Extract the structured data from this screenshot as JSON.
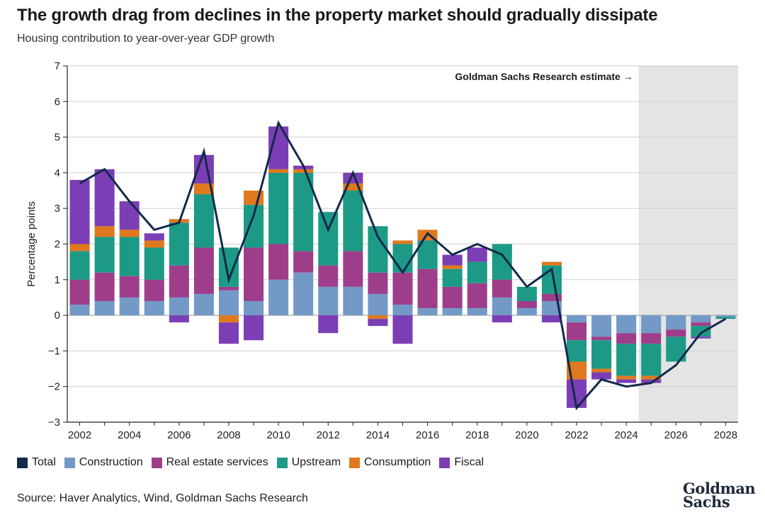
{
  "title": "The growth drag from declines in the property market should gradually dissipate",
  "subtitle": "Housing contribution to year-over-year GDP growth",
  "source": "Source: Haver Analytics, Wind, Goldman Sachs Research",
  "logo": {
    "line1": "Goldman",
    "line2": "Sachs"
  },
  "colors": {
    "Total": "#13294b",
    "Construction": "#7399c6",
    "Real estate services": "#9e3e8b",
    "Upstream": "#1c9a86",
    "Consumption": "#e0791d",
    "Fiscal": "#7c3eb5",
    "estimate_band": "#e4e4e4"
  },
  "legend": [
    {
      "name": "Total",
      "label": "Total"
    },
    {
      "name": "Construction",
      "label": "Construction"
    },
    {
      "name": "Real estate services",
      "label": "Real estate services"
    },
    {
      "name": "Upstream",
      "label": "Upstream"
    },
    {
      "name": "Consumption",
      "label": "Consumption"
    },
    {
      "name": "Fiscal",
      "label": "Fiscal"
    }
  ],
  "chart_data": {
    "type": "bar",
    "stacked": true,
    "title": "The growth drag from declines in the property market should gradually dissipate",
    "subtitle": "Housing contribution to year-over-year GDP growth",
    "xlabel": "",
    "ylabel": "Percentage points",
    "ylim": [
      -3,
      7
    ],
    "yticks": [
      -3,
      -2,
      -1,
      0,
      1,
      2,
      3,
      4,
      5,
      6,
      7
    ],
    "grid": true,
    "legend_position": "bottom",
    "categories": [
      2002,
      2003,
      2004,
      2005,
      2006,
      2007,
      2008,
      2009,
      2010,
      2011,
      2012,
      2013,
      2014,
      2015,
      2016,
      2017,
      2018,
      2019,
      2020,
      2021,
      2022,
      2023,
      2024,
      2025,
      2026,
      2027,
      2028
    ],
    "xtick_labels": [
      "2002",
      "2004",
      "2006",
      "2008",
      "2010",
      "2012",
      "2014",
      "2016",
      "2018",
      "2020",
      "2022",
      "2024",
      "2026",
      "2028"
    ],
    "estimate_start": 2025,
    "annotation": "Goldman Sachs Research estimate →",
    "series": [
      {
        "name": "Construction",
        "values": [
          0.3,
          0.4,
          0.5,
          0.4,
          0.5,
          0.6,
          0.7,
          0.4,
          1.0,
          1.2,
          0.8,
          0.8,
          0.6,
          0.3,
          0.2,
          0.2,
          0.2,
          0.5,
          0.2,
          0.4,
          -0.2,
          -0.6,
          -0.5,
          -0.5,
          -0.4,
          -0.2,
          -0.05
        ]
      },
      {
        "name": "Real estate services",
        "values": [
          0.7,
          0.8,
          0.6,
          0.6,
          0.9,
          1.3,
          0.1,
          1.5,
          1.0,
          0.6,
          0.6,
          1.0,
          0.6,
          0.9,
          1.1,
          0.6,
          0.7,
          0.5,
          0.2,
          0.2,
          -0.5,
          -0.1,
          -0.3,
          -0.3,
          -0.2,
          -0.1,
          0.0
        ]
      },
      {
        "name": "Upstream",
        "values": [
          0.8,
          1.0,
          1.1,
          0.9,
          1.2,
          1.5,
          1.1,
          1.2,
          2.0,
          2.2,
          1.5,
          1.7,
          1.3,
          0.8,
          0.8,
          0.5,
          0.6,
          1.0,
          0.4,
          0.8,
          -0.6,
          -0.8,
          -0.9,
          -0.9,
          -0.7,
          -0.3,
          -0.05
        ]
      },
      {
        "name": "Consumption",
        "values": [
          0.2,
          0.3,
          0.2,
          0.2,
          0.1,
          0.3,
          -0.2,
          0.4,
          0.1,
          0.1,
          0.0,
          0.2,
          -0.1,
          0.1,
          0.3,
          0.1,
          0.0,
          0.0,
          0.0,
          0.1,
          -0.5,
          -0.1,
          -0.1,
          -0.1,
          0.0,
          0.0,
          0.0
        ]
      },
      {
        "name": "Fiscal",
        "values": [
          1.8,
          1.6,
          0.8,
          0.2,
          -0.2,
          0.8,
          -0.6,
          -0.7,
          1.2,
          0.1,
          -0.5,
          0.3,
          -0.2,
          -0.8,
          0.0,
          0.3,
          0.4,
          -0.2,
          0.0,
          -0.2,
          -0.8,
          -0.2,
          -0.1,
          -0.1,
          0.0,
          -0.05,
          0.0
        ]
      }
    ],
    "total": [
      3.7,
      4.1,
      3.2,
      2.4,
      2.6,
      4.6,
      1.0,
      2.8,
      5.4,
      4.2,
      2.4,
      4.0,
      2.2,
      1.2,
      2.3,
      1.7,
      2.0,
      1.7,
      0.8,
      1.3,
      -2.6,
      -1.8,
      -2.0,
      -1.9,
      -1.4,
      -0.5,
      -0.1
    ]
  }
}
